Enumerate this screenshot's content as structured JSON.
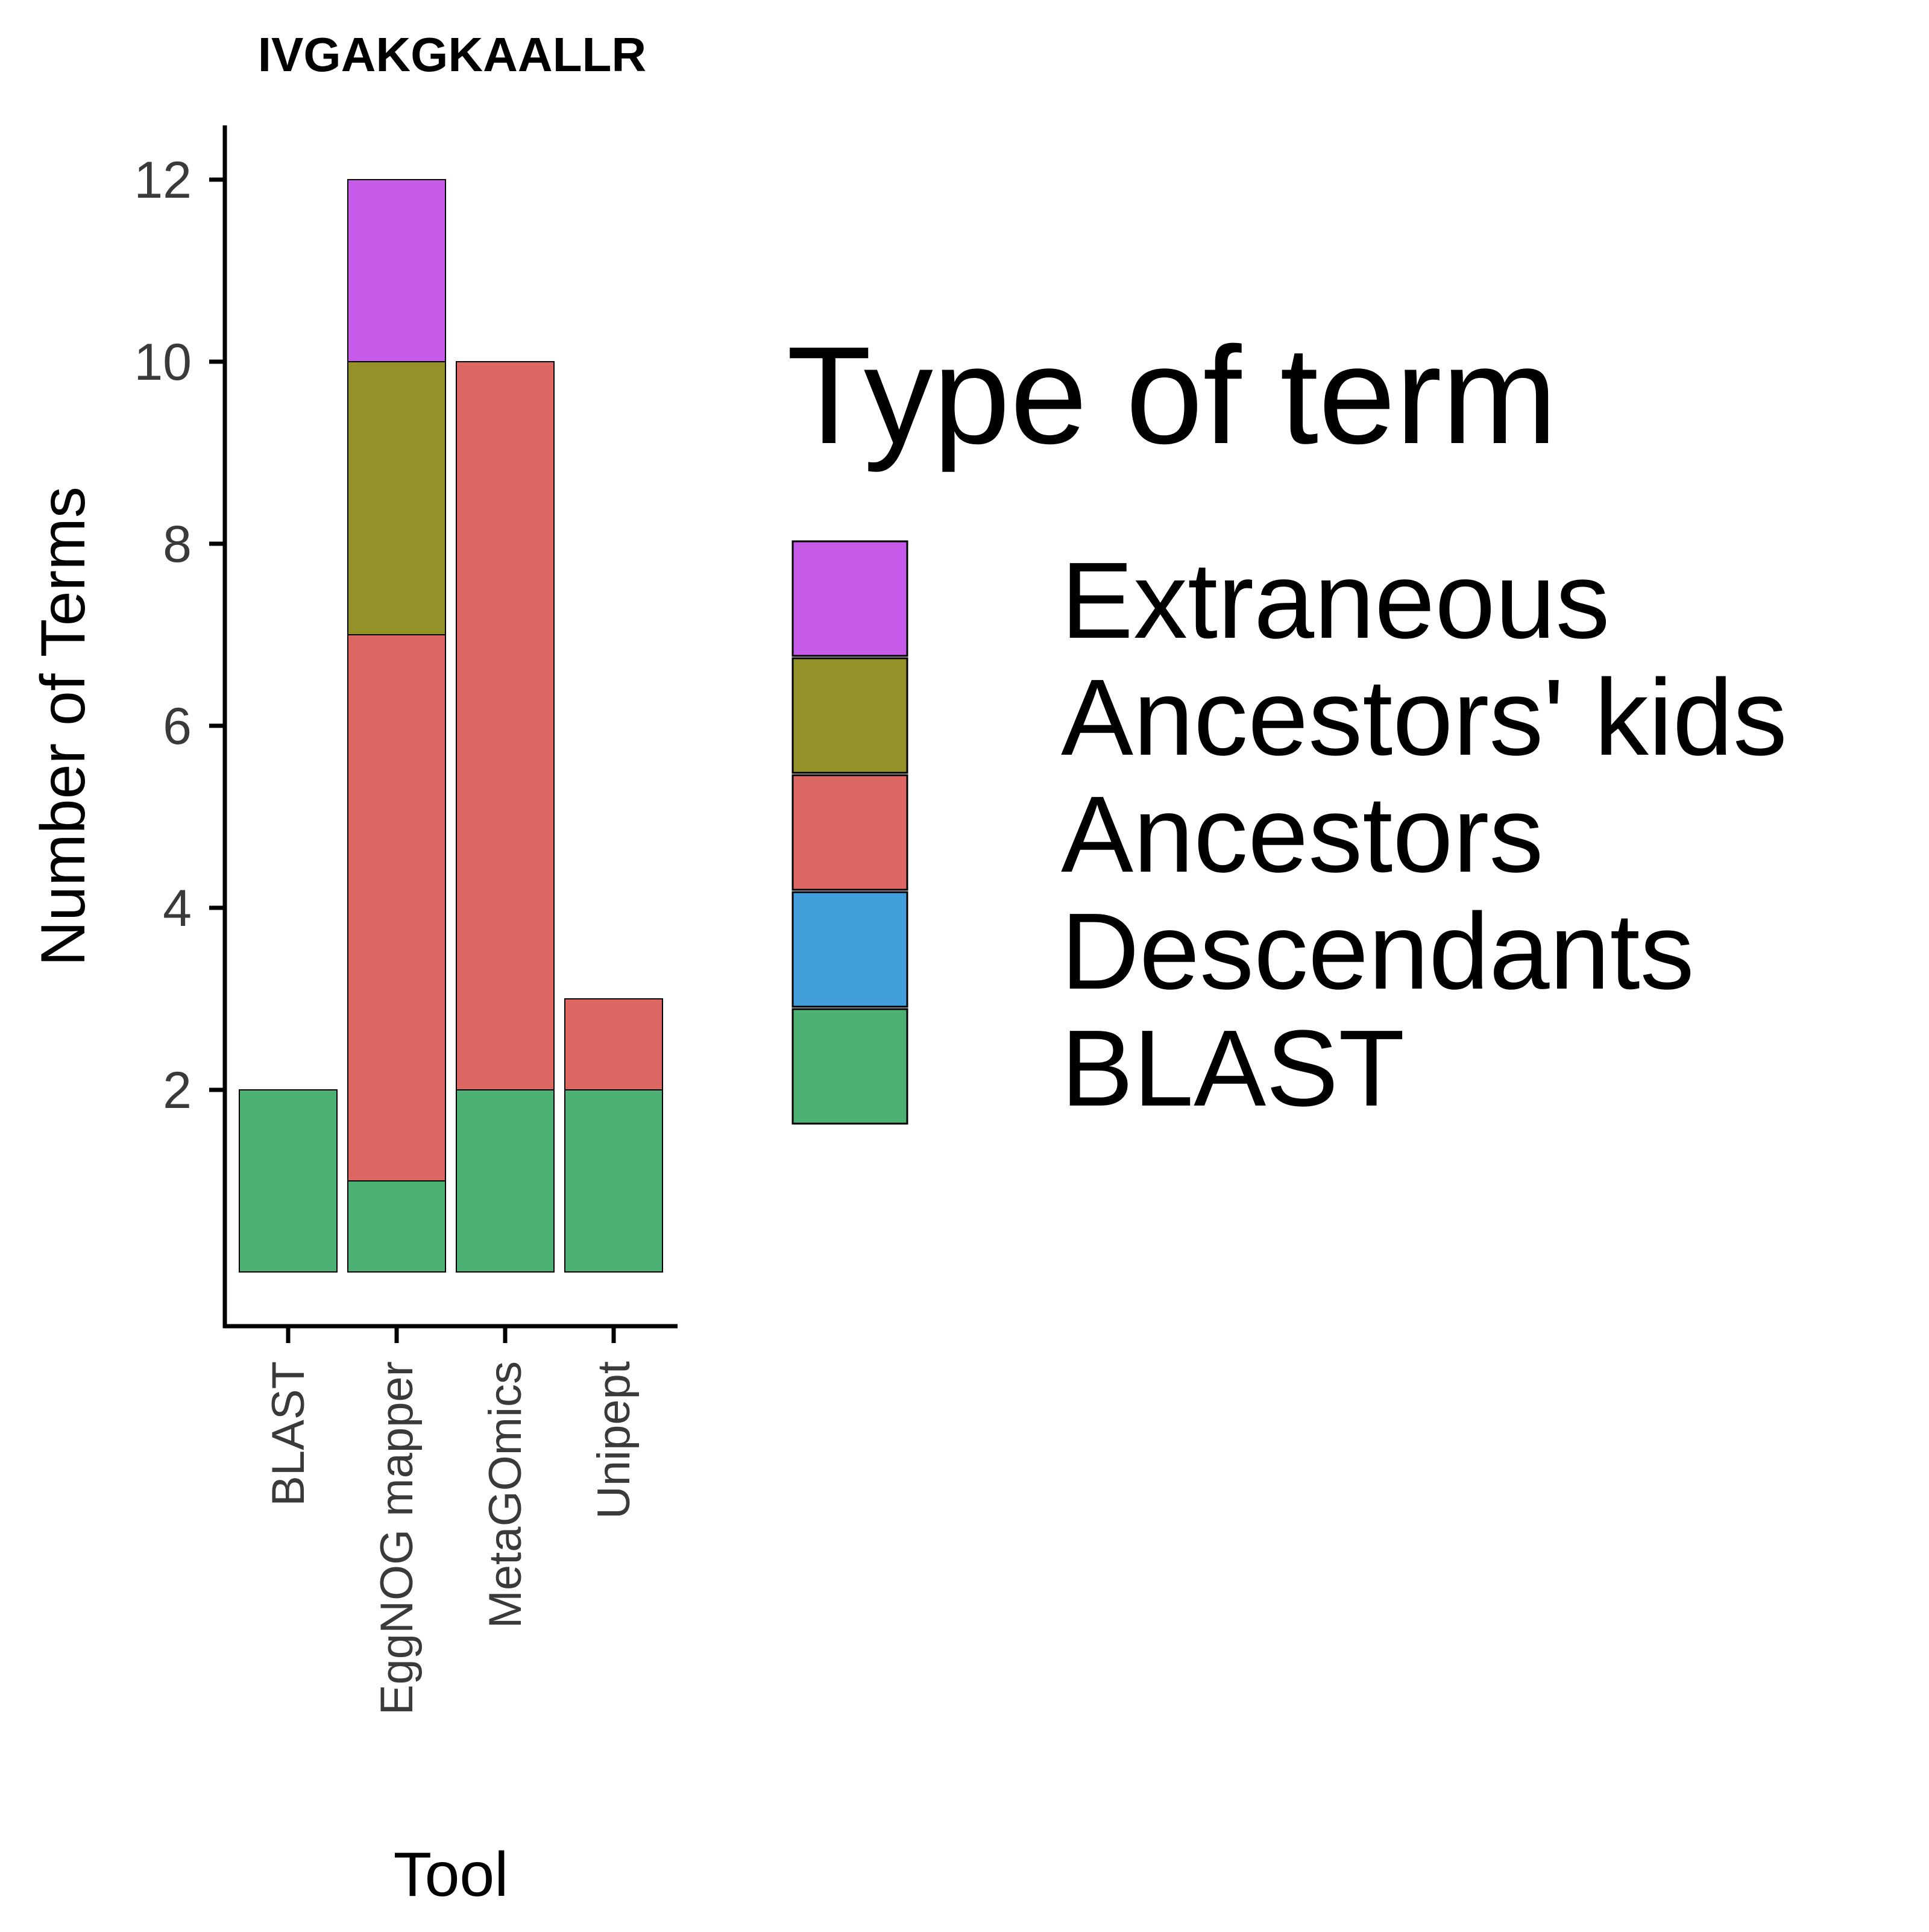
{
  "chart_data": {
    "type": "bar",
    "stacked": true,
    "title": "IVGAKGKAALLR",
    "xlabel": "Tool",
    "ylabel": "Number of Terms",
    "categories": [
      "BLAST",
      "EggNOG mapper",
      "MetaGOmics",
      "Unipept"
    ],
    "yticks": [
      2,
      4,
      6,
      8,
      10,
      12
    ],
    "ylim": [
      0,
      12.6
    ],
    "grid": false,
    "series": [
      {
        "name": "BLAST",
        "color": "#4db174",
        "values": [
          2,
          1,
          2,
          2
        ]
      },
      {
        "name": "Descendants",
        "color": "#429fdc",
        "values": [
          0,
          0,
          0,
          0
        ]
      },
      {
        "name": "Ancestors",
        "color": "#dd6763",
        "values": [
          0,
          6,
          8,
          1
        ]
      },
      {
        "name": "Ancestors' kids",
        "color": "#939127",
        "values": [
          0,
          3,
          0,
          0
        ]
      },
      {
        "name": "Extraneous",
        "color": "#c65ae9",
        "values": [
          0,
          2,
          0,
          0
        ]
      }
    ],
    "legend": {
      "title": "Type of term",
      "position": "right",
      "order": [
        "Extraneous",
        "Ancestors' kids",
        "Ancestors",
        "Descendants",
        "BLAST"
      ]
    }
  }
}
